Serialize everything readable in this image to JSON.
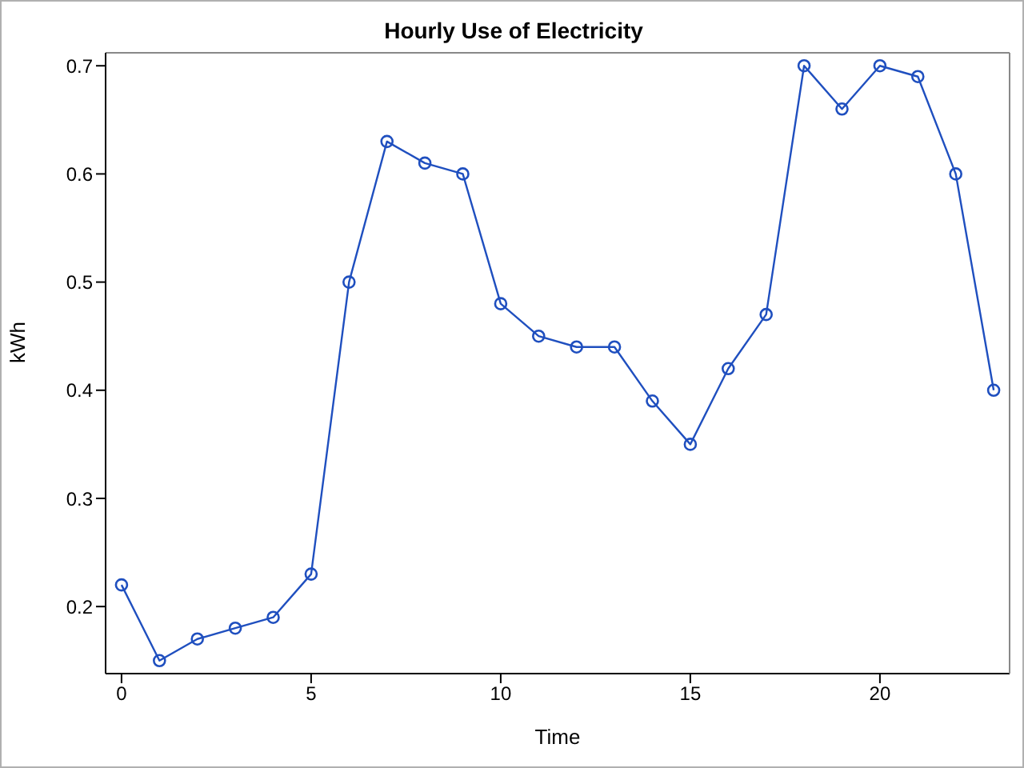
{
  "chart_data": {
    "type": "line",
    "title": "Hourly Use of Electricity",
    "xlabel": "Time",
    "ylabel": "kWh",
    "x": [
      0,
      1,
      2,
      3,
      4,
      5,
      6,
      7,
      8,
      9,
      10,
      11,
      12,
      13,
      14,
      15,
      16,
      17,
      18,
      19,
      20,
      21,
      22,
      23
    ],
    "series": [
      {
        "color": "#1f4fbf",
        "values": [
          0.22,
          0.15,
          0.17,
          0.18,
          0.19,
          0.23,
          0.5,
          0.63,
          0.61,
          0.6,
          0.48,
          0.45,
          0.44,
          0.44,
          0.39,
          0.35,
          0.42,
          0.47,
          0.7,
          0.66,
          0.7,
          0.69,
          0.6,
          0.4
        ]
      }
    ],
    "xlim": [
      -0.42,
      23.42
    ],
    "xticks": [
      0,
      5,
      10,
      15,
      20
    ],
    "ylim": [
      0.138,
      0.712
    ],
    "yticks": [
      0.2,
      0.3,
      0.4,
      0.5,
      0.6,
      0.7
    ],
    "grid": false,
    "legend": false,
    "marker": "circle",
    "line_style": "solid"
  }
}
